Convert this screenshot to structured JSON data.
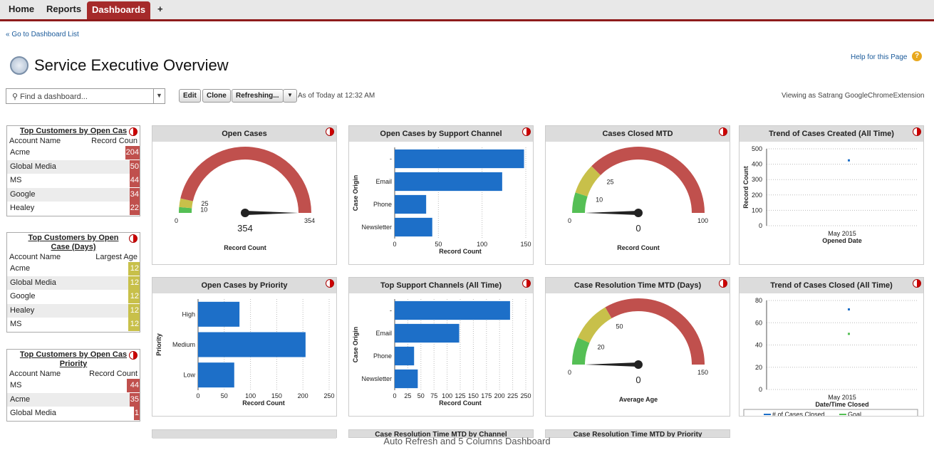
{
  "nav": {
    "home": "Home",
    "reports": "Reports",
    "dashboards": "Dashboards",
    "plus": "+"
  },
  "page": {
    "back_link": "« Go to Dashboard List",
    "title": "Service Executive Overview",
    "help": "Help for this Page",
    "viewing": "Viewing as Satrang GoogleChromeExtension",
    "timestamp": "As of Today at 12:32 AM",
    "caption": "Auto Refresh and 5 Columns Dashboard"
  },
  "search": {
    "placeholder": "Find a dashboard..."
  },
  "buttons": {
    "edit": "Edit",
    "clone": "Clone",
    "refresh": "Refreshing...",
    "refresh_arrow": "▼"
  },
  "table1": {
    "title": "Top Customers by Open Cas",
    "col1": "Account Name",
    "col2": "Record Coun",
    "rows": [
      {
        "name": "Acme",
        "value": "204"
      },
      {
        "name": "Global Media",
        "value": "50"
      },
      {
        "name": "MS",
        "value": "44"
      },
      {
        "name": "Google",
        "value": "34"
      },
      {
        "name": "Healey",
        "value": "22"
      }
    ]
  },
  "table2": {
    "title": "Top Customers by Open Case (Days)",
    "col1": "Account Name",
    "col2": "Largest Age",
    "rows": [
      {
        "name": "Acme",
        "value": "12"
      },
      {
        "name": "Global Media",
        "value": "12"
      },
      {
        "name": "Google",
        "value": "12"
      },
      {
        "name": "Healey",
        "value": "12"
      },
      {
        "name": "MS",
        "value": "12"
      }
    ]
  },
  "table3": {
    "title": "Top Customers by Open Cas Priority",
    "col1": "Account Name",
    "col2": "Record Count",
    "rows": [
      {
        "name": "MS",
        "value": "44"
      },
      {
        "name": "Acme",
        "value": "35"
      },
      {
        "name": "Global Media",
        "value": "1"
      }
    ]
  },
  "colors": {
    "red": "#c0504d",
    "yellow": "#c8c04a",
    "green": "#55bf55",
    "blue": "#1d6fc8"
  },
  "chart_data": [
    {
      "type": "gauge",
      "title": "Open Cases",
      "min": "0",
      "max": "354",
      "value": "354",
      "thresholds": [
        "10",
        "25"
      ],
      "label": "Record Count"
    },
    {
      "type": "bar",
      "title": "Open Cases by Support Channel",
      "categories": [
        "-",
        "Email",
        "Phone",
        "Newsletter"
      ],
      "values": [
        148,
        123,
        36,
        43
      ],
      "ylabel": "Case Origin",
      "xlabel": "Record Count",
      "ticks": [
        "0",
        "50",
        "100",
        "150"
      ],
      "xlim": [
        0,
        150
      ]
    },
    {
      "type": "gauge",
      "title": "Cases Closed MTD",
      "min": "0",
      "max": "100",
      "value": "0",
      "thresholds": [
        "10",
        "25"
      ],
      "label": "Record Count"
    },
    {
      "type": "scatter",
      "title": "Trend of Cases Created (All Time)",
      "ticks": [
        "0",
        "100",
        "200",
        "300",
        "400",
        "500"
      ],
      "ylabel": "Record Count",
      "xtick": "May 2015",
      "xlabel": "Opened Date",
      "points": [
        {
          "x": "May 2015",
          "y": 425
        }
      ],
      "ylim": [
        0,
        500
      ]
    },
    {
      "type": "bar",
      "title": "Open Cases by Priority",
      "categories": [
        "High",
        "Medium",
        "Low"
      ],
      "values": [
        79,
        205,
        69
      ],
      "ylabel": "Priority",
      "xlabel": "Record Count",
      "ticks": [
        "0",
        "50",
        "100",
        "150",
        "200",
        "250"
      ],
      "xlim": [
        0,
        250
      ]
    },
    {
      "type": "bar",
      "title": "Top Support Channels (All Time)",
      "categories": [
        "-",
        "Email",
        "Phone",
        "Newsletter"
      ],
      "values": [
        220,
        123,
        37,
        44
      ],
      "ylabel": "Case Origin",
      "xlabel": "Record Count",
      "ticks": [
        "0",
        "25",
        "50",
        "75",
        "100",
        "125",
        "150",
        "175",
        "200",
        "225",
        "250"
      ],
      "xlim": [
        0,
        250
      ]
    },
    {
      "type": "gauge",
      "title": "Case Resolution Time MTD (Days)",
      "min": "0",
      "max": "150",
      "value": "0",
      "thresholds": [
        "20",
        "50"
      ],
      "label": "Average Age"
    },
    {
      "type": "scatter",
      "title": "Trend of Cases Closed (All Time)",
      "ticks": [
        "0",
        "20",
        "40",
        "60",
        "80"
      ],
      "xtick": "May 2015",
      "xlabel": "Date/Time Closed",
      "legend": [
        "# of Cases Closed",
        "Goal"
      ],
      "ylim": [
        0,
        80
      ],
      "series": [
        {
          "name": "# of Cases Closed",
          "y": 72
        },
        {
          "name": "Goal",
          "y": 50
        }
      ]
    }
  ],
  "bottom": {
    "p1": "Case Resolution Time MTD by Channel",
    "p2": "Case Resolution Time MTD by Priority"
  }
}
